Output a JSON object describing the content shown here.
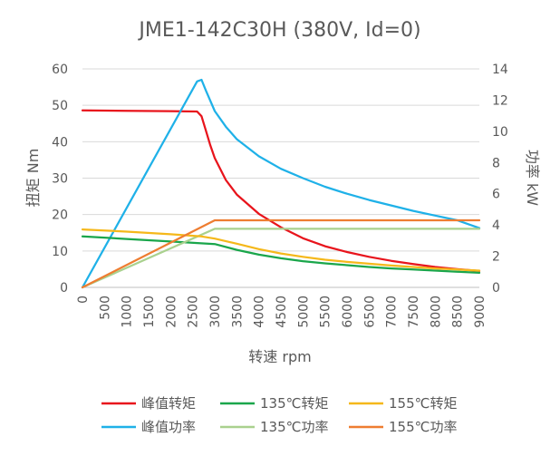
{
  "chart_data": {
    "type": "line",
    "title": "JME1-142C30H (380V, Id=0)",
    "xlabel": "转速 rpm",
    "ylabel_left": "扭矩 Nm",
    "ylabel_right": "功率 kW",
    "xlim": [
      0,
      9000
    ],
    "ylim_left": [
      0,
      60
    ],
    "ylim_right": [
      0,
      14
    ],
    "x_ticks": [
      0,
      500,
      1000,
      1500,
      2000,
      2500,
      3000,
      3500,
      4000,
      4500,
      5000,
      5500,
      6000,
      6500,
      7000,
      7500,
      8000,
      8500,
      9000
    ],
    "y_ticks_left": [
      0,
      10,
      20,
      30,
      40,
      50,
      60
    ],
    "y_ticks_right": [
      0,
      2,
      4,
      6,
      8,
      10,
      12,
      14
    ],
    "grid": "horizontal",
    "legend_position": "bottom",
    "series": [
      {
        "name": "峰值转矩",
        "axis": "left",
        "color": "#e8141c",
        "points": [
          [
            0,
            48.6
          ],
          [
            1000,
            48.5
          ],
          [
            2000,
            48.4
          ],
          [
            2600,
            48.3
          ],
          [
            2700,
            47.0
          ],
          [
            2800,
            43.0
          ],
          [
            2900,
            39.0
          ],
          [
            3000,
            35.5
          ],
          [
            3250,
            29.5
          ],
          [
            3500,
            25.5
          ],
          [
            4000,
            20.2
          ],
          [
            4500,
            16.5
          ],
          [
            5000,
            13.5
          ],
          [
            5500,
            11.3
          ],
          [
            6000,
            9.7
          ],
          [
            6500,
            8.4
          ],
          [
            7000,
            7.3
          ],
          [
            7500,
            6.4
          ],
          [
            8000,
            5.6
          ],
          [
            8500,
            5.0
          ],
          [
            9000,
            4.5
          ]
        ]
      },
      {
        "name": "峰值功率",
        "axis": "right",
        "color": "#1fb1e8",
        "points": [
          [
            0,
            0
          ],
          [
            2600,
            13.2
          ],
          [
            2700,
            13.3
          ],
          [
            2800,
            12.6
          ],
          [
            3000,
            11.3
          ],
          [
            3250,
            10.3
          ],
          [
            3500,
            9.5
          ],
          [
            4000,
            8.4
          ],
          [
            4500,
            7.6
          ],
          [
            5000,
            7.0
          ],
          [
            5500,
            6.45
          ],
          [
            6000,
            6.0
          ],
          [
            6500,
            5.6
          ],
          [
            7000,
            5.25
          ],
          [
            7500,
            4.9
          ],
          [
            8000,
            4.6
          ],
          [
            8500,
            4.3
          ],
          [
            9000,
            3.8
          ]
        ]
      },
      {
        "name": "135℃转矩",
        "axis": "left",
        "color": "#1aa64b",
        "points": [
          [
            0,
            14.0
          ],
          [
            1000,
            13.3
          ],
          [
            2000,
            12.6
          ],
          [
            3000,
            11.9
          ],
          [
            3500,
            10.3
          ],
          [
            4000,
            9.0
          ],
          [
            4500,
            8.0
          ],
          [
            5000,
            7.2
          ],
          [
            5500,
            6.6
          ],
          [
            6000,
            6.1
          ],
          [
            6500,
            5.6
          ],
          [
            7000,
            5.2
          ],
          [
            7500,
            4.9
          ],
          [
            8000,
            4.6
          ],
          [
            8500,
            4.3
          ],
          [
            9000,
            4.0
          ]
        ]
      },
      {
        "name": "135℃功率",
        "axis": "right",
        "color": "#a9d18e",
        "points": [
          [
            0,
            0
          ],
          [
            3000,
            3.75
          ],
          [
            9000,
            3.75
          ]
        ]
      },
      {
        "name": "155℃转矩",
        "axis": "left",
        "color": "#f5b81a",
        "points": [
          [
            0,
            15.9
          ],
          [
            1000,
            15.3
          ],
          [
            2000,
            14.6
          ],
          [
            2700,
            14.0
          ],
          [
            3000,
            13.4
          ],
          [
            3500,
            12.0
          ],
          [
            4000,
            10.5
          ],
          [
            4500,
            9.3
          ],
          [
            5000,
            8.4
          ],
          [
            5500,
            7.6
          ],
          [
            6000,
            7.0
          ],
          [
            6500,
            6.5
          ],
          [
            7000,
            6.0
          ],
          [
            7500,
            5.6
          ],
          [
            8000,
            5.2
          ],
          [
            8500,
            4.9
          ],
          [
            9000,
            4.6
          ]
        ]
      },
      {
        "name": "155℃功率",
        "axis": "right",
        "color": "#ee7d31",
        "points": [
          [
            0,
            0
          ],
          [
            3000,
            4.3
          ],
          [
            9000,
            4.3
          ]
        ]
      }
    ]
  }
}
